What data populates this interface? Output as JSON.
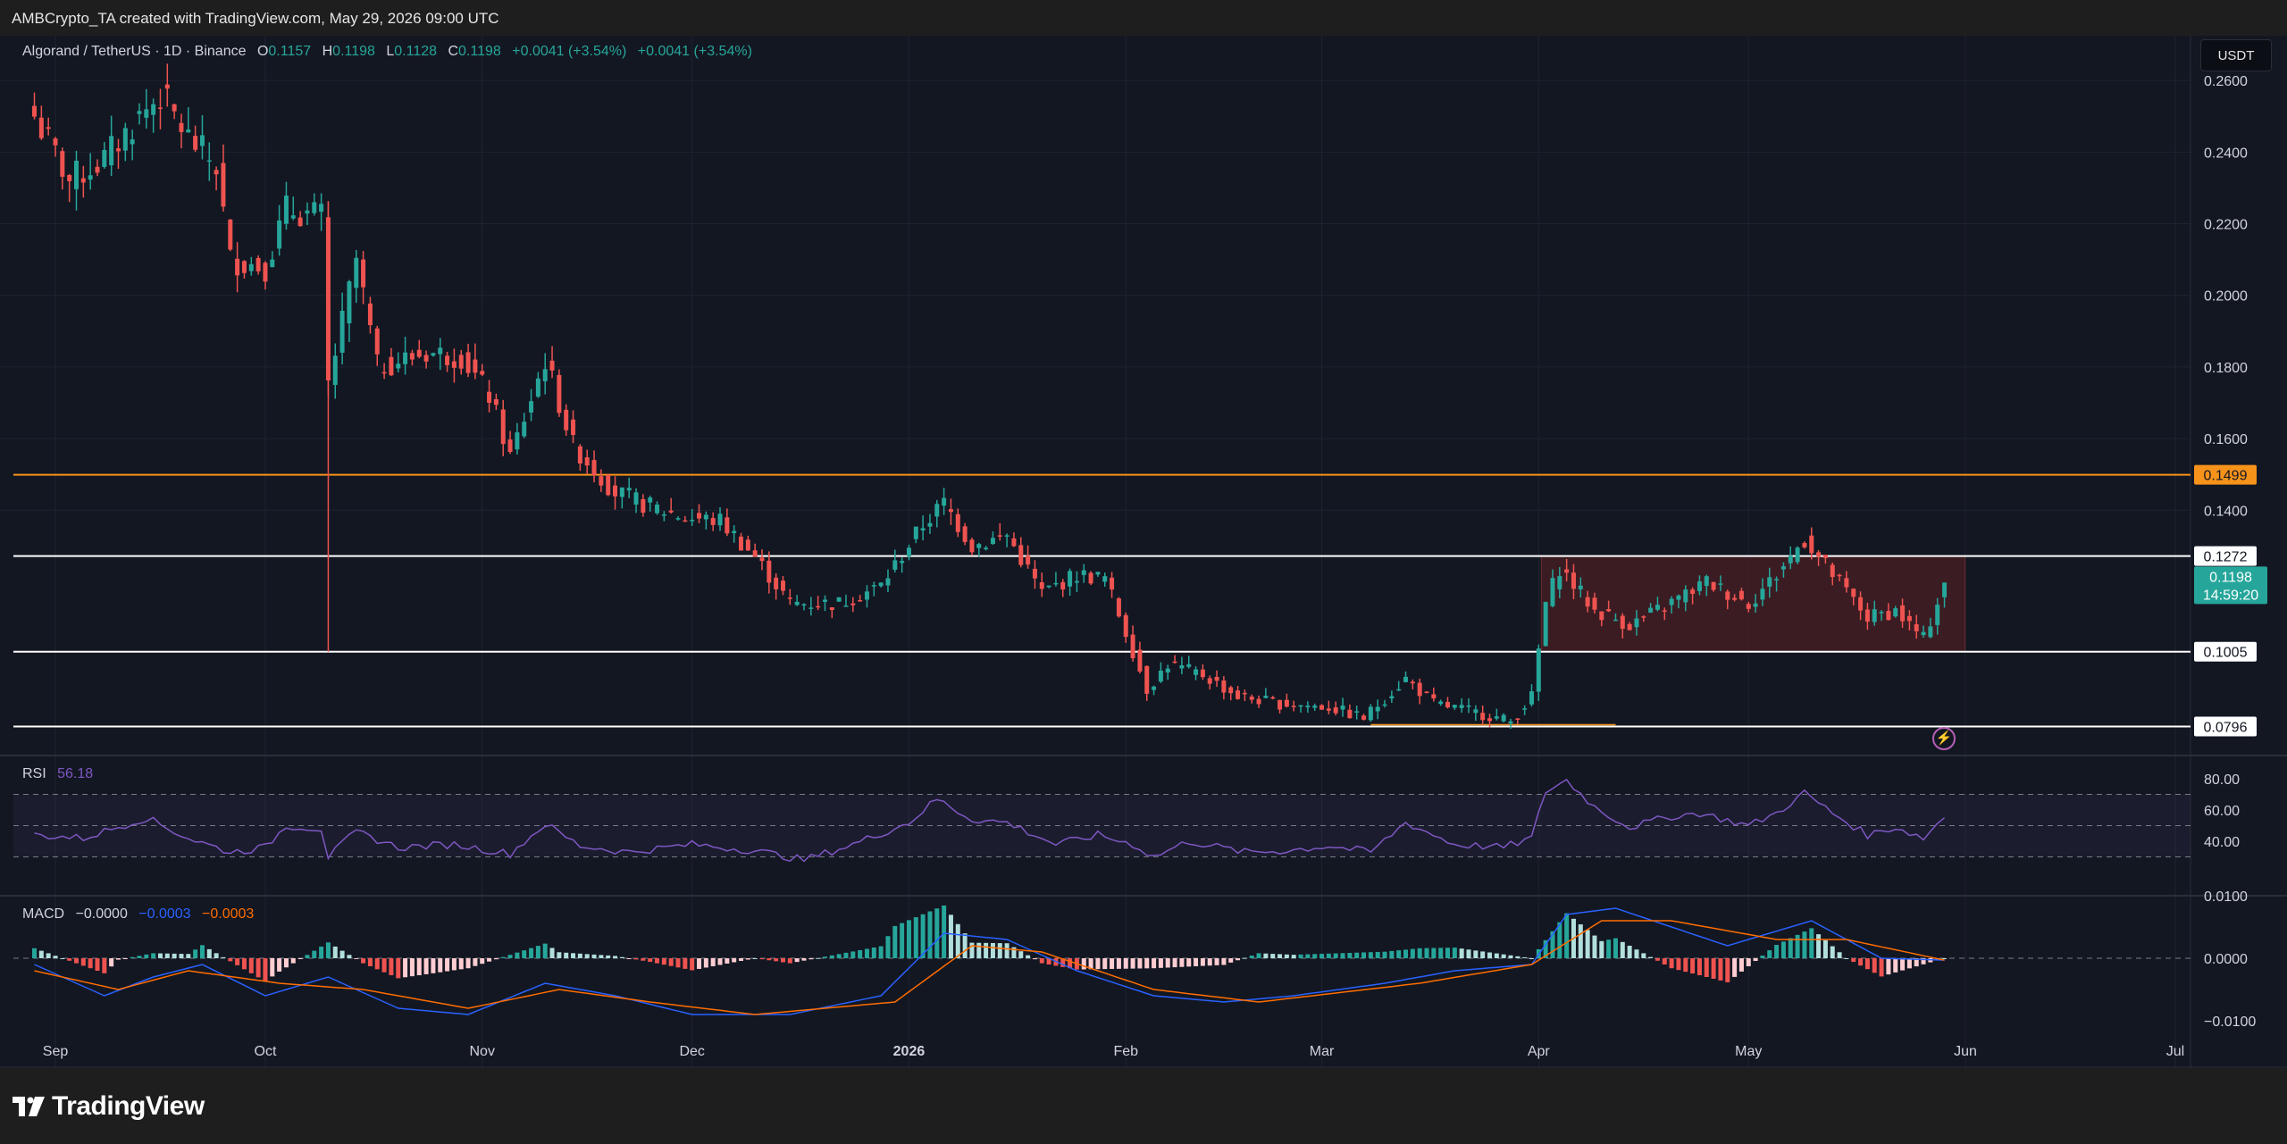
{
  "header": {
    "credit": "AMBCrypto_TA created with TradingView.com, May 29, 2026 09:00 UTC"
  },
  "symbol": {
    "title": "Algorand / TetherUS · 1D · Binance",
    "o_label": "O",
    "o": "0.1157",
    "h_label": "H",
    "h": "0.1198",
    "l_label": "L",
    "l": "0.1128",
    "c_label": "C",
    "c": "0.1198",
    "change1": "+0.0041 (+3.54%)",
    "change2": "+0.0041 (+3.54%)"
  },
  "currency_button": "USDT",
  "rsi": {
    "label": "RSI",
    "value": "56.18",
    "color": "#7e57c2"
  },
  "macd": {
    "label": "MACD",
    "hist": "−0.0000",
    "macd": "−0.0003",
    "signal": "−0.0003"
  },
  "footer": {
    "brand": "TradingView"
  },
  "colors": {
    "up": "#26a69a",
    "down": "#ef5350",
    "orange": "#f7931a",
    "bg": "#131722",
    "range_box": "#4a1f24",
    "macd_line": "#2962ff",
    "signal_line": "#ff6d00"
  },
  "chart_data": [
    {
      "type": "candlestick",
      "title": "Algorand / TetherUS · 1D · Binance",
      "y_axis": {
        "min": 0.072,
        "max": 0.272,
        "ticks": [
          "0.2600",
          "0.2400",
          "0.2200",
          "0.2000",
          "0.1800",
          "0.1600",
          "0.1400"
        ]
      },
      "x_axis": {
        "ticks": [
          "Sep",
          "Oct",
          "Nov",
          "Dec",
          "2026",
          "Feb",
          "Mar",
          "Apr",
          "May",
          "Jun",
          "Jul"
        ]
      },
      "key_levels": [
        {
          "value": 0.1499,
          "label": "0.1499",
          "color": "#f7931a"
        },
        {
          "value": 0.1272,
          "label": "0.1272",
          "color": "#ffffff"
        },
        {
          "value": 0.1005,
          "label": "0.1005",
          "color": "#ffffff"
        },
        {
          "value": 0.0796,
          "label": "0.0796",
          "color": "#ffffff"
        }
      ],
      "last_price": {
        "value": 0.1198,
        "label": "0.1198",
        "countdown": "14:59:20"
      },
      "range_box": {
        "from": "2026-04-01",
        "to": "2026-05-29",
        "top": 0.1272,
        "bottom": 0.1005
      },
      "close_path": [
        [
          "2025-08-29",
          0.25
        ],
        [
          "2025-09-03",
          0.232
        ],
        [
          "2025-09-08",
          0.238
        ],
        [
          "2025-09-13",
          0.25
        ],
        [
          "2025-09-16",
          0.256
        ],
        [
          "2025-09-20",
          0.244
        ],
        [
          "2025-09-24",
          0.236
        ],
        [
          "2025-09-26",
          0.21
        ],
        [
          "2025-10-01",
          0.208
        ],
        [
          "2025-10-04",
          0.224
        ],
        [
          "2025-10-09",
          0.222
        ],
        [
          "2025-10-10",
          0.175
        ],
        [
          "2025-10-14",
          0.21
        ],
        [
          "2025-10-17",
          0.18
        ],
        [
          "2025-10-24",
          0.184
        ],
        [
          "2025-10-29",
          0.183
        ],
        [
          "2025-11-02",
          0.172
        ],
        [
          "2025-11-05",
          0.155
        ],
        [
          "2025-11-10",
          0.182
        ],
        [
          "2025-11-14",
          0.158
        ],
        [
          "2025-11-20",
          0.145
        ],
        [
          "2025-11-25",
          0.141
        ],
        [
          "2025-11-30",
          0.138
        ],
        [
          "2025-12-05",
          0.137
        ],
        [
          "2025-12-10",
          0.127
        ],
        [
          "2025-12-15",
          0.114
        ],
        [
          "2025-12-22",
          0.114
        ],
        [
          "2025-12-28",
          0.119
        ],
        [
          "2026-01-03",
          0.136
        ],
        [
          "2026-01-06",
          0.142
        ],
        [
          "2026-01-10",
          0.13
        ],
        [
          "2026-01-15",
          0.133
        ],
        [
          "2026-01-20",
          0.117
        ],
        [
          "2026-01-25",
          0.122
        ],
        [
          "2026-01-29",
          0.121
        ],
        [
          "2026-02-01",
          0.106
        ],
        [
          "2026-02-04",
          0.09
        ],
        [
          "2026-02-07",
          0.097
        ],
        [
          "2026-02-12",
          0.094
        ],
        [
          "2026-02-17",
          0.088
        ],
        [
          "2026-02-23",
          0.086
        ],
        [
          "2026-03-02",
          0.085
        ],
        [
          "2026-03-07",
          0.082
        ],
        [
          "2026-03-13",
          0.093
        ],
        [
          "2026-03-17",
          0.086
        ],
        [
          "2026-03-22",
          0.084
        ],
        [
          "2026-03-28",
          0.081
        ],
        [
          "2026-03-31",
          0.088
        ],
        [
          "2026-04-02",
          0.114
        ],
        [
          "2026-04-04",
          0.124
        ],
        [
          "2026-04-09",
          0.112
        ],
        [
          "2026-04-14",
          0.108
        ],
        [
          "2026-04-18",
          0.112
        ],
        [
          "2026-04-25",
          0.12
        ],
        [
          "2026-05-01",
          0.114
        ],
        [
          "2026-05-05",
          0.122
        ],
        [
          "2026-05-09",
          0.132
        ],
        [
          "2026-05-13",
          0.122
        ],
        [
          "2026-05-18",
          0.11
        ],
        [
          "2026-05-22",
          0.112
        ],
        [
          "2026-05-26",
          0.104
        ],
        [
          "2026-05-29",
          0.1198
        ]
      ]
    },
    {
      "type": "line",
      "title": "RSI",
      "y_axis": {
        "ticks": [
          "80.00",
          "60.00",
          "40.00"
        ],
        "bands": [
          70,
          50,
          30
        ]
      },
      "series": [
        {
          "name": "RSI",
          "values": [
            [
              "2025-08-29",
              44
            ],
            [
              "2025-09-05",
              42
            ],
            [
              "2025-09-14",
              55
            ],
            [
              "2025-09-20",
              42
            ],
            [
              "2025-09-26",
              33
            ],
            [
              "2025-10-01",
              36
            ],
            [
              "2025-10-04",
              50
            ],
            [
              "2025-10-09",
              48
            ],
            [
              "2025-10-10",
              30
            ],
            [
              "2025-10-14",
              46
            ],
            [
              "2025-10-20",
              36
            ],
            [
              "2025-10-28",
              38
            ],
            [
              "2025-11-05",
              32
            ],
            [
              "2025-11-10",
              51
            ],
            [
              "2025-11-15",
              37
            ],
            [
              "2025-11-22",
              33
            ],
            [
              "2025-12-01",
              38
            ],
            [
              "2025-12-10",
              34
            ],
            [
              "2025-12-17",
              28
            ],
            [
              "2025-12-24",
              38
            ],
            [
              "2026-01-01",
              52
            ],
            [
              "2026-01-05",
              67
            ],
            [
              "2026-01-10",
              54
            ],
            [
              "2026-01-15",
              52
            ],
            [
              "2026-01-22",
              38
            ],
            [
              "2026-01-28",
              44
            ],
            [
              "2026-02-02",
              38
            ],
            [
              "2026-02-05",
              30
            ],
            [
              "2026-02-10",
              40
            ],
            [
              "2026-02-18",
              33
            ],
            [
              "2026-02-24",
              34
            ],
            [
              "2026-03-02",
              37
            ],
            [
              "2026-03-08",
              33
            ],
            [
              "2026-03-13",
              52
            ],
            [
              "2026-03-20",
              38
            ],
            [
              "2026-03-27",
              36
            ],
            [
              "2026-03-31",
              42
            ],
            [
              "2026-04-02",
              72
            ],
            [
              "2026-04-05",
              79
            ],
            [
              "2026-04-09",
              62
            ],
            [
              "2026-04-14",
              49
            ],
            [
              "2026-04-20",
              56
            ],
            [
              "2026-04-24",
              58
            ],
            [
              "2026-05-01",
              50
            ],
            [
              "2026-05-05",
              58
            ],
            [
              "2026-05-09",
              71
            ],
            [
              "2026-05-13",
              58
            ],
            [
              "2026-05-18",
              44
            ],
            [
              "2026-05-22",
              49
            ],
            [
              "2026-05-26",
              42
            ],
            [
              "2026-05-29",
              56
            ]
          ]
        }
      ]
    },
    {
      "type": "line",
      "title": "MACD",
      "y_axis": {
        "ticks": [
          "0.0100",
          "0.0000",
          "−0.0100"
        ]
      },
      "series": [
        {
          "name": "MACD",
          "values": [
            [
              "2025-08-29",
              -0.001
            ],
            [
              "2025-09-08",
              -0.006
            ],
            [
              "2025-09-15",
              -0.003
            ],
            [
              "2025-09-22",
              -0.001
            ],
            [
              "2025-10-01",
              -0.006
            ],
            [
              "2025-10-07",
              -0.004
            ],
            [
              "2025-10-10",
              -0.003
            ],
            [
              "2025-10-20",
              -0.008
            ],
            [
              "2025-10-30",
              -0.009
            ],
            [
              "2025-11-10",
              -0.004
            ],
            [
              "2025-11-20",
              -0.006
            ],
            [
              "2025-12-01",
              -0.009
            ],
            [
              "2025-12-15",
              -0.009
            ],
            [
              "2025-12-28",
              -0.006
            ],
            [
              "2026-01-06",
              0.004
            ],
            [
              "2026-01-15",
              0.003
            ],
            [
              "2026-01-25",
              -0.002
            ],
            [
              "2026-02-05",
              -0.006
            ],
            [
              "2026-02-15",
              -0.007
            ],
            [
              "2026-02-25",
              -0.006
            ],
            [
              "2026-03-10",
              -0.004
            ],
            [
              "2026-03-20",
              -0.002
            ],
            [
              "2026-03-31",
              -0.001
            ],
            [
              "2026-04-05",
              0.007
            ],
            [
              "2026-04-12",
              0.008
            ],
            [
              "2026-04-20",
              0.005
            ],
            [
              "2026-04-28",
              0.002
            ],
            [
              "2026-05-10",
              0.006
            ],
            [
              "2026-05-20",
              0.0
            ],
            [
              "2026-05-29",
              -0.0003
            ]
          ]
        },
        {
          "name": "Signal",
          "values": [
            [
              "2025-08-29",
              -0.002
            ],
            [
              "2025-09-10",
              -0.005
            ],
            [
              "2025-09-20",
              -0.002
            ],
            [
              "2025-10-03",
              -0.004
            ],
            [
              "2025-10-15",
              -0.005
            ],
            [
              "2025-10-30",
              -0.008
            ],
            [
              "2025-11-12",
              -0.005
            ],
            [
              "2025-11-25",
              -0.007
            ],
            [
              "2025-12-10",
              -0.009
            ],
            [
              "2025-12-30",
              -0.007
            ],
            [
              "2026-01-10",
              0.002
            ],
            [
              "2026-01-20",
              0.001
            ],
            [
              "2026-02-05",
              -0.005
            ],
            [
              "2026-02-20",
              -0.007
            ],
            [
              "2026-03-15",
              -0.004
            ],
            [
              "2026-03-31",
              -0.001
            ],
            [
              "2026-04-10",
              0.006
            ],
            [
              "2026-04-20",
              0.006
            ],
            [
              "2026-05-05",
              0.003
            ],
            [
              "2026-05-15",
              0.003
            ],
            [
              "2026-05-29",
              -0.0003
            ]
          ]
        }
      ]
    }
  ]
}
